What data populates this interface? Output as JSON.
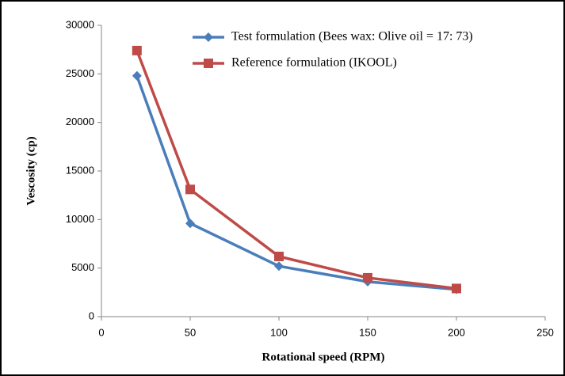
{
  "chart_data": {
    "type": "line",
    "x_label": "Rotational speed (RPM)",
    "y_label": "Vescosity (cp)",
    "x": [
      20,
      50,
      100,
      150,
      200
    ],
    "series": [
      {
        "name": "Test formulation (Bees wax: Olive oil = 17: 73)",
        "color": "#4a7ebb",
        "marker": "diamond",
        "values": [
          24800,
          9600,
          5200,
          3600,
          2800
        ]
      },
      {
        "name": "Reference formulation (IKOOL)",
        "color": "#be4b48",
        "marker": "square",
        "values": [
          27400,
          13100,
          6200,
          4000,
          2900
        ]
      }
    ],
    "xlim": [
      0,
      250
    ],
    "xticks": [
      0,
      50,
      100,
      150,
      200,
      250
    ],
    "ylim": [
      0,
      30000
    ],
    "yticks": [
      0,
      5000,
      10000,
      15000,
      20000,
      25000,
      30000
    ],
    "grid": false
  }
}
